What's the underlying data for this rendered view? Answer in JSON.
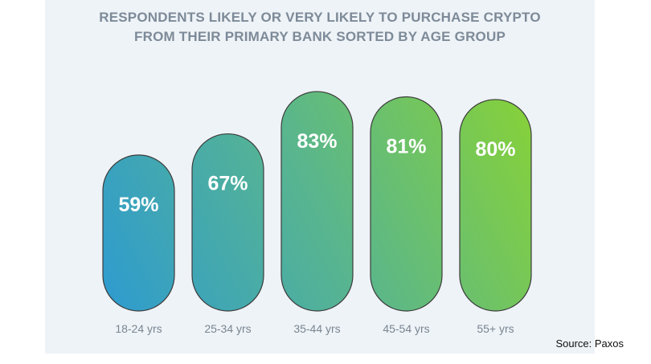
{
  "chart_data": {
    "type": "bar",
    "title_lines": [
      "RESPONDENTS LIKELY OR VERY LIKELY TO PURCHASE CRYPTO",
      "FROM THEIR PRIMARY BANK SORTED BY AGE GROUP"
    ],
    "categories": [
      "18-24 yrs",
      "25-34 yrs",
      "35-44 yrs",
      "45-54 yrs",
      "55+ yrs"
    ],
    "values": [
      59,
      67,
      83,
      81,
      80
    ],
    "value_labels": [
      "59%",
      "67%",
      "83%",
      "81%",
      "80%"
    ],
    "unit": "%",
    "ylim": [
      0,
      100
    ],
    "grid": false,
    "legend": "none",
    "colors": [
      "#2e9bd0",
      "#3fa5b8",
      "#58b58f",
      "#6cc465",
      "#86d13a"
    ]
  },
  "source": "Source: Paxos"
}
